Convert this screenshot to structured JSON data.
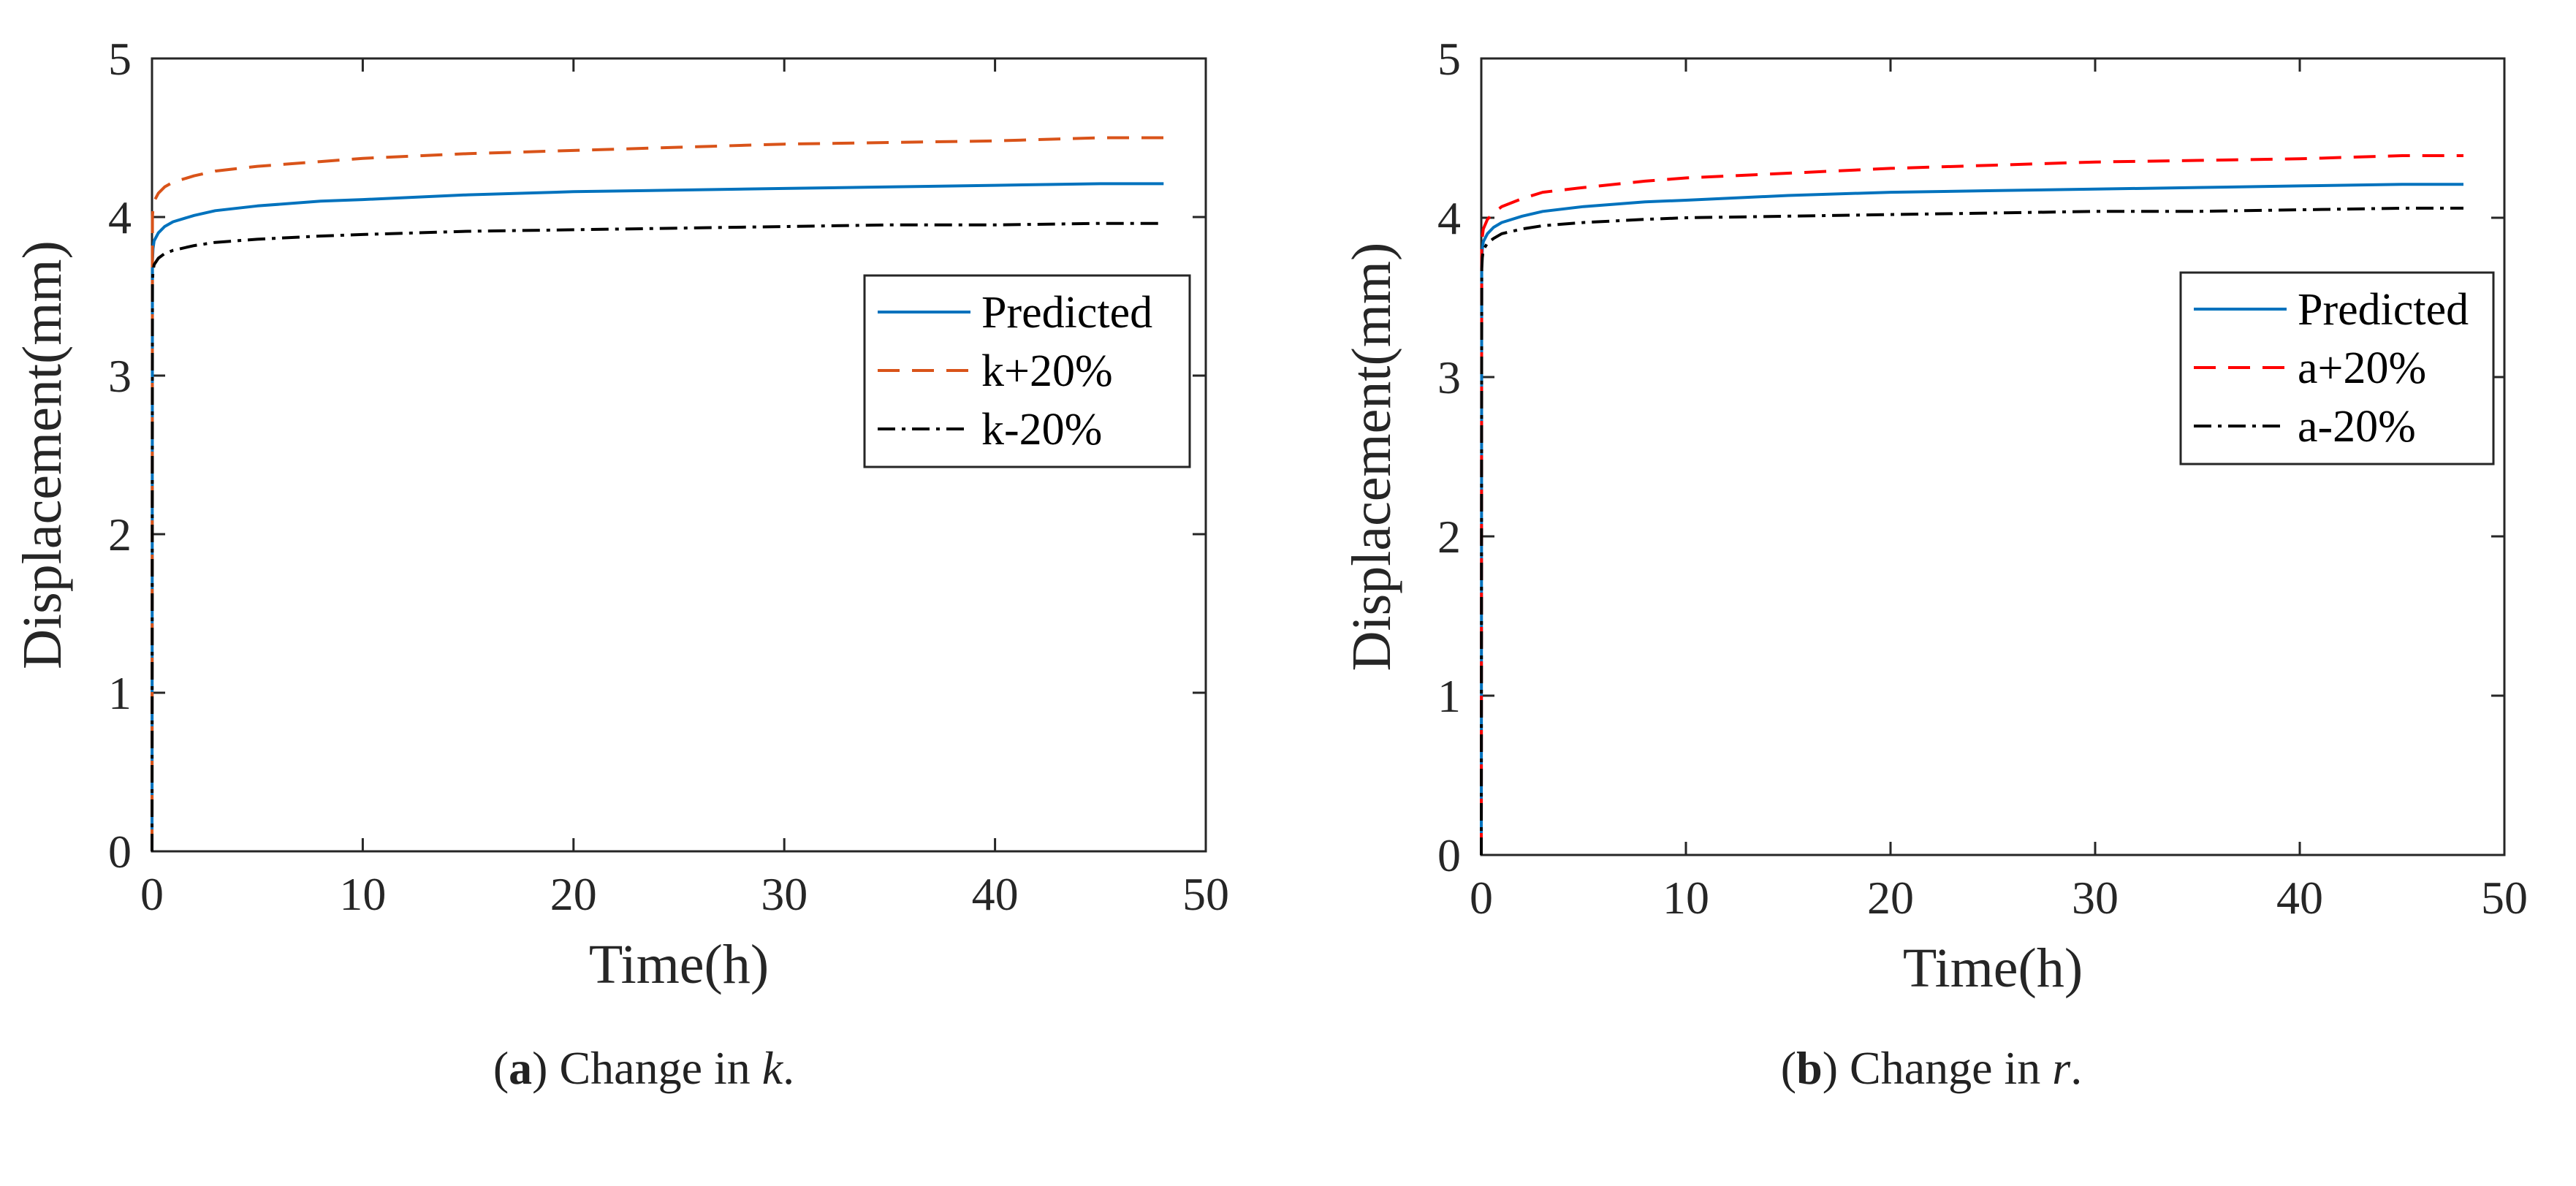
{
  "chart_data": [
    {
      "type": "line",
      "panel": "a",
      "title": "",
      "xlabel": "Time(h)",
      "ylabel": "Displacement(mm)",
      "xlim": [
        0,
        50
      ],
      "ylim": [
        0,
        5
      ],
      "xticks": [
        0,
        10,
        20,
        30,
        40,
        50
      ],
      "yticks": [
        0,
        1,
        2,
        3,
        4,
        5
      ],
      "grid": false,
      "legend_position": "upper-right",
      "series": [
        {
          "name": "Predicted",
          "color": "#0072BD",
          "dash": "solid",
          "x": [
            0,
            0.02,
            0.05,
            0.1,
            0.3,
            0.6,
            1,
            2,
            3,
            5,
            8,
            10,
            15,
            20,
            25,
            30,
            35,
            40,
            45,
            48
          ],
          "y": [
            0,
            3.72,
            3.8,
            3.85,
            3.9,
            3.94,
            3.97,
            4.01,
            4.04,
            4.07,
            4.1,
            4.11,
            4.14,
            4.16,
            4.17,
            4.18,
            4.19,
            4.2,
            4.21,
            4.21
          ]
        },
        {
          "name": "k+20%",
          "color": "#D95319",
          "dash": "dashed",
          "x": [
            0,
            0.02,
            0.05,
            0.1,
            0.3,
            0.6,
            1,
            2,
            3,
            5,
            8,
            10,
            15,
            20,
            25,
            30,
            35,
            40,
            45,
            48
          ],
          "y": [
            0,
            4.0,
            4.06,
            4.1,
            4.15,
            4.19,
            4.22,
            4.26,
            4.29,
            4.32,
            4.35,
            4.37,
            4.4,
            4.42,
            4.44,
            4.46,
            4.47,
            4.48,
            4.5,
            4.5
          ]
        },
        {
          "name": "k-20%",
          "color": "#000000",
          "dash": "dashdot",
          "x": [
            0,
            0.02,
            0.05,
            0.1,
            0.3,
            0.6,
            1,
            2,
            3,
            5,
            8,
            10,
            15,
            20,
            25,
            30,
            35,
            40,
            45,
            48
          ],
          "y": [
            0,
            3.6,
            3.66,
            3.7,
            3.74,
            3.77,
            3.79,
            3.82,
            3.84,
            3.86,
            3.88,
            3.89,
            3.91,
            3.92,
            3.93,
            3.94,
            3.95,
            3.95,
            3.96,
            3.96
          ]
        }
      ]
    },
    {
      "type": "line",
      "panel": "b",
      "title": "",
      "xlabel": "Time(h)",
      "ylabel": "Displacement(mm)",
      "xlim": [
        0,
        50
      ],
      "ylim": [
        0,
        5
      ],
      "xticks": [
        0,
        10,
        20,
        30,
        40,
        50
      ],
      "yticks": [
        0,
        1,
        2,
        3,
        4,
        5
      ],
      "grid": false,
      "legend_position": "upper-right",
      "series": [
        {
          "name": "Predicted",
          "color": "#0072BD",
          "dash": "solid",
          "x": [
            0,
            0.02,
            0.05,
            0.1,
            0.3,
            0.6,
            1,
            2,
            3,
            5,
            8,
            10,
            15,
            20,
            25,
            30,
            35,
            40,
            45,
            48
          ],
          "y": [
            0,
            3.72,
            3.8,
            3.85,
            3.9,
            3.94,
            3.97,
            4.01,
            4.04,
            4.07,
            4.1,
            4.11,
            4.14,
            4.16,
            4.17,
            4.18,
            4.19,
            4.2,
            4.21,
            4.21
          ]
        },
        {
          "name": "a+20%",
          "color": "#FF0000",
          "dash": "dashed",
          "x": [
            0,
            0.02,
            0.05,
            0.1,
            0.3,
            0.6,
            1,
            2,
            3,
            5,
            8,
            10,
            15,
            20,
            25,
            30,
            35,
            40,
            45,
            48
          ],
          "y": [
            0,
            3.8,
            3.88,
            3.93,
            3.99,
            4.03,
            4.07,
            4.12,
            4.16,
            4.19,
            4.23,
            4.25,
            4.28,
            4.31,
            4.33,
            4.35,
            4.36,
            4.37,
            4.39,
            4.39
          ]
        },
        {
          "name": "a-20%",
          "color": "#000000",
          "dash": "dashdot",
          "x": [
            0,
            0.02,
            0.05,
            0.1,
            0.3,
            0.6,
            1,
            2,
            3,
            5,
            8,
            10,
            15,
            20,
            25,
            30,
            35,
            40,
            45,
            48
          ],
          "y": [
            0,
            3.68,
            3.75,
            3.8,
            3.84,
            3.87,
            3.9,
            3.93,
            3.95,
            3.97,
            3.99,
            4.0,
            4.01,
            4.02,
            4.03,
            4.04,
            4.04,
            4.05,
            4.06,
            4.06
          ]
        }
      ]
    }
  ],
  "captions": [
    {
      "label": "a",
      "prefix": "(",
      "suffix": ") Change in ",
      "variable": "k",
      "end": "."
    },
    {
      "label": "b",
      "prefix": "(",
      "suffix": ") Change in ",
      "variable": "r",
      "end": "."
    }
  ]
}
